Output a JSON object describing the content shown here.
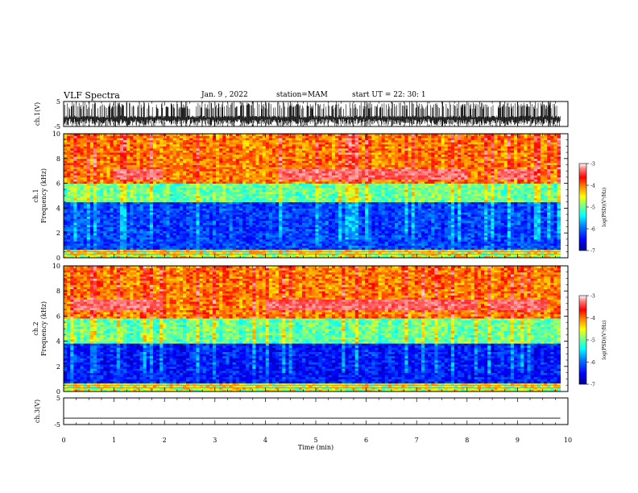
{
  "header": {
    "title": "VLF Spectra",
    "date": "Jan. 9 , 2022",
    "station": "station=MAM",
    "start_ut": "start UT =  22: 30: 1"
  },
  "chart_data": [
    {
      "type": "line",
      "panel": "waveform",
      "ylabel": "ch.1(V)",
      "ylim": [
        -5,
        5
      ],
      "ytick_labels": [
        "5",
        "-5"
      ],
      "xlim": [
        0,
        10
      ],
      "description_color": "#000000"
    },
    {
      "type": "heatmap",
      "panel": "spectrogram",
      "ylabel": "ch.1\nFrequency (kHz)",
      "ylim": [
        0,
        10
      ],
      "ytick_labels": [
        "0",
        "2",
        "4",
        "6",
        "8",
        "10"
      ],
      "xlim": [
        0,
        9.85
      ],
      "colorbar": {
        "label": "log(PSD)(V²/Hz)",
        "range": [
          -7,
          -3
        ],
        "tick_labels": [
          "-3",
          "-4",
          "-5",
          "-6",
          "-7"
        ]
      },
      "bands": [
        {
          "freq": [
            0,
            0.6
          ],
          "log_psd": -4.8
        },
        {
          "freq": [
            0.6,
            4.5
          ],
          "log_psd": -6.2
        },
        {
          "freq": [
            4.5,
            6.0
          ],
          "log_psd": -5.0
        },
        {
          "freq": [
            6.0,
            10.0
          ],
          "log_psd": -4.0
        }
      ],
      "emission": {
        "freq_khz": 6.8,
        "time_min": [
          [
            1.0,
            2.0
          ],
          [
            4.3,
            8.0
          ],
          [
            8.6,
            9.3
          ]
        ]
      }
    },
    {
      "type": "heatmap",
      "panel": "spectrogram",
      "ylabel": "ch.2\nFrequency (kHz)",
      "ylim": [
        0,
        10
      ],
      "ytick_labels": [
        "0",
        "2",
        "4",
        "6",
        "8",
        "10"
      ],
      "xlim": [
        0,
        9.85
      ],
      "colorbar": {
        "label": "log(PSD)(V²/Hz)",
        "range": [
          -7,
          -3
        ],
        "tick_labels": [
          "-3",
          "-4",
          "-5",
          "-6",
          "-7"
        ]
      },
      "bands": [
        {
          "freq": [
            0,
            0.6
          ],
          "log_psd": -4.6
        },
        {
          "freq": [
            0.6,
            3.8
          ],
          "log_psd": -6.4
        },
        {
          "freq": [
            3.8,
            5.8
          ],
          "log_psd": -5.0
        },
        {
          "freq": [
            5.8,
            10.0
          ],
          "log_psd": -4.0
        }
      ],
      "emission": {
        "freq_khz": 6.9,
        "time_min": [
          [
            0.2,
            2.0
          ],
          [
            4.0,
            8.2
          ],
          [
            8.4,
            9.6
          ]
        ]
      }
    },
    {
      "type": "line",
      "panel": "waveform",
      "ylabel": "ch.3(V)",
      "ylim": [
        -5,
        5
      ],
      "ytick_labels": [
        "5",
        "-5"
      ],
      "xlim": [
        0,
        10
      ],
      "flat_value": -2.6
    }
  ],
  "xaxis": {
    "label": "Time (min)",
    "tick_labels": [
      "0",
      "1",
      "2",
      "3",
      "4",
      "5",
      "6",
      "7",
      "8",
      "9",
      "10"
    ]
  },
  "colorscale": [
    "#00008f",
    "#0000ff",
    "#0080ff",
    "#00ffff",
    "#80ff80",
    "#ffff00",
    "#ff8000",
    "#ff0000",
    "#ff8080",
    "#ffffff"
  ]
}
